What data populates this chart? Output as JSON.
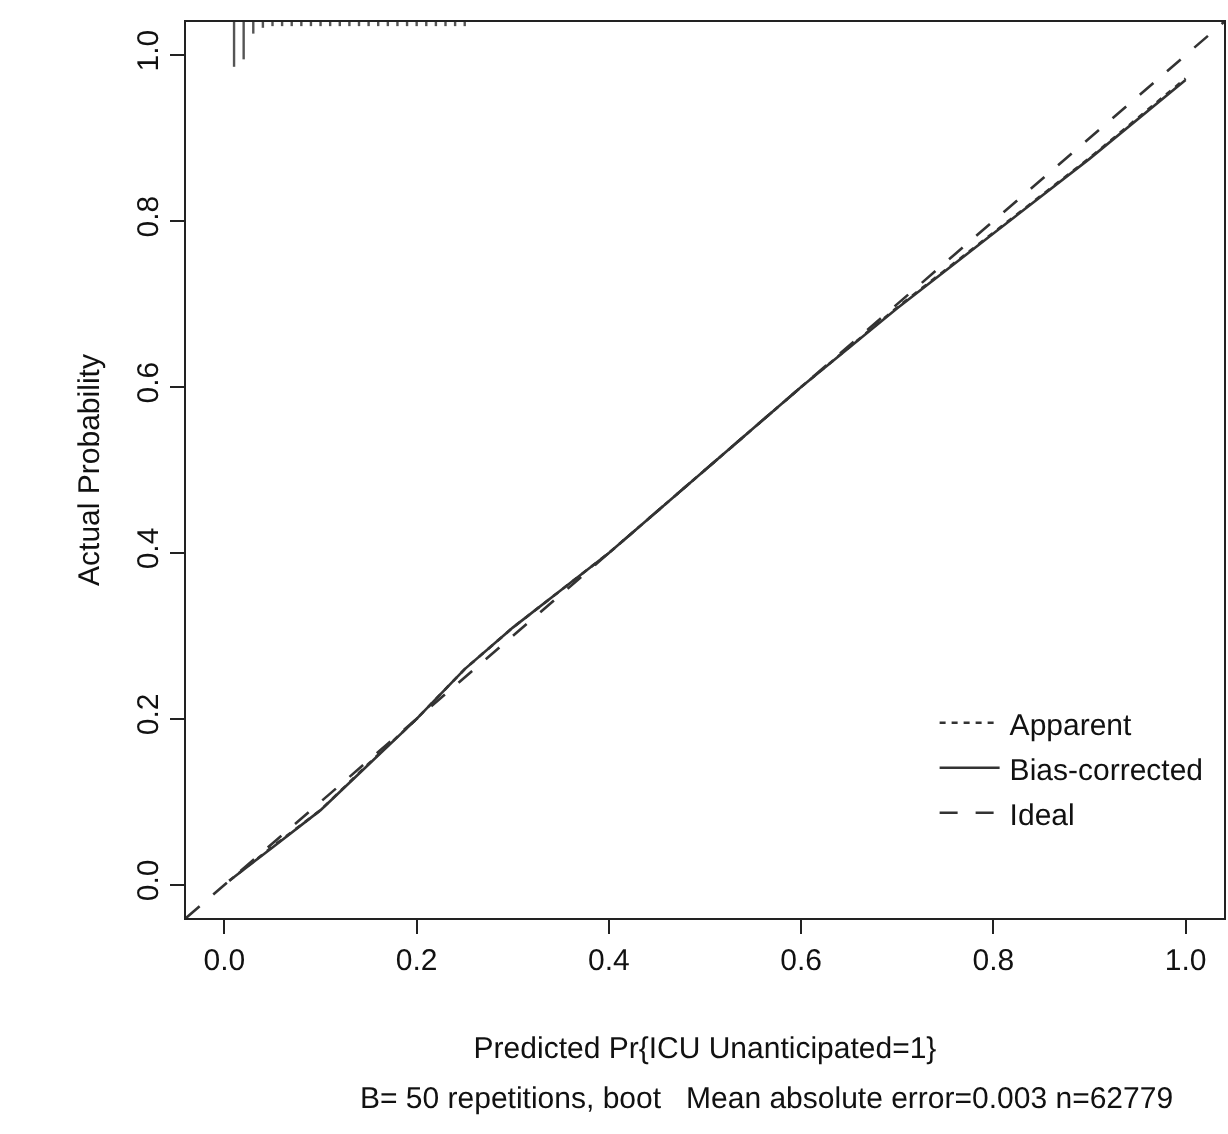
{
  "chart_data": {
    "type": "line",
    "xlabel": "Predicted Pr{ICU Unanticipated=1}",
    "ylabel": "Actual Probability",
    "annotations": [
      "B= 50 repetitions, boot   Mean absolute error=0.003 n=62779"
    ],
    "xlim": [
      -0.04,
      1.04
    ],
    "ylim": [
      -0.04,
      1.04
    ],
    "xticks": [
      "0.0",
      0.2,
      0.4,
      0.6,
      0.8,
      "1.0"
    ],
    "yticks": [
      "0.0",
      0.2,
      0.4,
      0.6,
      0.8,
      "1.0"
    ],
    "grid": false,
    "legend": "bottom right",
    "series": [
      {
        "type": "bar",
        "color": "#555555",
        "x": [
          0.01,
          0.02,
          0.03,
          0.04,
          0.05,
          0.06,
          0.07,
          0.08,
          0.09,
          0.1,
          0.11,
          0.12,
          0.13,
          0.14,
          0.15,
          0.16,
          0.17,
          0.18,
          0.19,
          0.2,
          0.21,
          0.22,
          0.23,
          0.24,
          0.25
        ],
        "base": [
          1.04,
          1.04,
          1.04,
          1.04,
          1.04,
          1.04,
          1.04,
          1.04,
          1.04,
          1.04,
          1.04,
          1.04,
          1.04,
          1.04,
          1.04,
          1.04,
          1.04,
          1.04,
          1.04,
          1.04,
          1.04,
          1.04,
          1.04,
          1.04,
          1.04
        ],
        "values": [
          -0.054,
          -0.045,
          -0.014,
          -0.007,
          -0.005,
          -0.005,
          -0.005,
          -0.005,
          -0.005,
          -0.005,
          -0.005,
          -0.005,
          -0.005,
          -0.005,
          -0.005,
          -0.005,
          -0.005,
          -0.005,
          -0.005,
          -0.005,
          -0.005,
          -0.005,
          -0.005,
          -0.005,
          -0.005
        ]
      },
      {
        "name": "Apparent",
        "color": "#333333",
        "line_style": "dotted",
        "x": [
          0.005,
          0.05,
          0.1,
          0.15,
          0.2,
          0.25,
          0.3,
          0.35,
          0.4,
          0.45,
          0.5,
          0.6,
          0.7,
          0.8,
          0.9,
          1.0
        ],
        "values": [
          0.005,
          0.046,
          0.09,
          0.146,
          0.2,
          0.26,
          0.31,
          0.355,
          0.4,
          0.45,
          0.5,
          0.6,
          0.696,
          0.786,
          0.876,
          0.972
        ]
      },
      {
        "name": "Bias-corrected",
        "color": "#333333",
        "line_style": "solid",
        "x": [
          0.005,
          0.05,
          0.1,
          0.15,
          0.2,
          0.25,
          0.3,
          0.35,
          0.4,
          0.45,
          0.5,
          0.6,
          0.7,
          0.8,
          0.9,
          1.0
        ],
        "values": [
          0.005,
          0.045,
          0.09,
          0.145,
          0.2,
          0.26,
          0.31,
          0.355,
          0.4,
          0.45,
          0.5,
          0.6,
          0.695,
          0.785,
          0.875,
          0.97
        ]
      },
      {
        "name": "Ideal",
        "color": "#333333",
        "line_style": "dashed",
        "x": [
          -0.04,
          1.04
        ],
        "values": [
          -0.04,
          1.04
        ]
      }
    ]
  }
}
